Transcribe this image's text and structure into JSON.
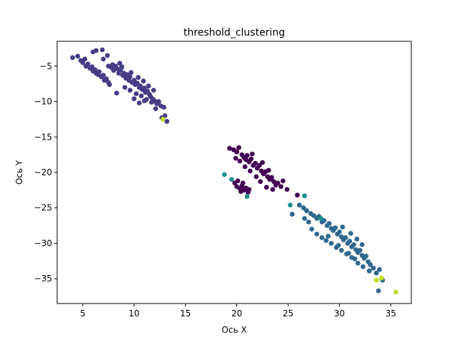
{
  "chart_data": {
    "type": "scatter",
    "title": "threshold_clustering",
    "xlabel": "Ось X",
    "ylabel": "Ось Y",
    "xlim": [
      2.5,
      37.0
    ],
    "ylim": [
      -38.5,
      -1.5
    ],
    "xticks": [
      5,
      10,
      15,
      20,
      25,
      30,
      35
    ],
    "yticks": [
      -5,
      -10,
      -15,
      -20,
      -25,
      -30,
      -35
    ],
    "xtick_labels": [
      "5",
      "10",
      "15",
      "20",
      "25",
      "30",
      "35"
    ],
    "ytick_labels": [
      "−5",
      "−10",
      "−15",
      "−20",
      "−25",
      "−30",
      "−35"
    ],
    "grid": false,
    "legend": false,
    "colormap": "viridis",
    "series": [
      {
        "color": "#433e85",
        "points": [
          [
            4.0,
            -3.8
          ],
          [
            4.5,
            -3.6
          ],
          [
            4.8,
            -4.2
          ],
          [
            5.0,
            -4.5
          ],
          [
            5.2,
            -4.0
          ],
          [
            5.3,
            -5.0
          ],
          [
            5.5,
            -4.7
          ],
          [
            5.7,
            -5.3
          ],
          [
            5.9,
            -5.1
          ],
          [
            6.0,
            -5.7
          ],
          [
            6.2,
            -5.5
          ],
          [
            6.3,
            -6.0
          ],
          [
            6.5,
            -6.2
          ],
          [
            6.6,
            -5.8
          ],
          [
            6.8,
            -6.5
          ],
          [
            7.0,
            -6.3
          ],
          [
            7.1,
            -7.0
          ],
          [
            7.3,
            -6.8
          ],
          [
            7.5,
            -7.3
          ],
          [
            7.6,
            -7.6
          ],
          [
            6.0,
            -3.0
          ],
          [
            6.3,
            -2.8
          ],
          [
            6.9,
            -2.7
          ],
          [
            7.4,
            -3.5
          ],
          [
            7.0,
            -4.0
          ],
          [
            7.5,
            -5.0
          ],
          [
            7.8,
            -5.2
          ],
          [
            8.0,
            -5.6
          ],
          [
            8.2,
            -5.0
          ],
          [
            8.4,
            -5.4
          ],
          [
            8.5,
            -6.0
          ],
          [
            8.7,
            -5.5
          ],
          [
            8.9,
            -6.3
          ],
          [
            9.0,
            -6.0
          ],
          [
            9.2,
            -6.7
          ],
          [
            9.3,
            -6.2
          ],
          [
            9.5,
            -7.0
          ],
          [
            9.6,
            -6.5
          ],
          [
            9.8,
            -7.3
          ],
          [
            10.0,
            -7.0
          ],
          [
            10.1,
            -7.6
          ],
          [
            10.3,
            -7.4
          ],
          [
            10.5,
            -8.0
          ],
          [
            10.6,
            -7.8
          ],
          [
            10.8,
            -8.3
          ],
          [
            11.0,
            -8.1
          ],
          [
            11.1,
            -8.7
          ],
          [
            11.3,
            -8.5
          ],
          [
            11.5,
            -9.0
          ],
          [
            11.6,
            -9.3
          ],
          [
            11.8,
            -9.6
          ],
          [
            12.0,
            -9.9
          ],
          [
            12.2,
            -10.3
          ],
          [
            12.4,
            -10.0
          ],
          [
            12.6,
            -10.6
          ],
          [
            12.9,
            -10.8
          ],
          [
            13.0,
            -12.0
          ],
          [
            13.2,
            -12.8
          ],
          [
            12.7,
            -12.3
          ],
          [
            8.8,
            -5.1
          ],
          [
            9.7,
            -5.9
          ],
          [
            10.4,
            -6.6
          ],
          [
            10.9,
            -7.1
          ],
          [
            11.4,
            -7.8
          ],
          [
            11.9,
            -8.4
          ],
          [
            9.1,
            -8.0
          ],
          [
            9.6,
            -8.4
          ],
          [
            10.2,
            -8.9
          ],
          [
            10.7,
            -9.2
          ],
          [
            11.2,
            -9.7
          ],
          [
            8.3,
            -8.8
          ],
          [
            10.0,
            -9.6
          ],
          [
            7.9,
            -4.8
          ],
          [
            8.6,
            -4.6
          ],
          [
            11.7,
            -10.1
          ],
          [
            12.1,
            -11.0
          ],
          [
            11.0,
            -9.9
          ],
          [
            10.5,
            -10.2
          ]
        ]
      },
      {
        "color": "#440154",
        "points": [
          [
            19.3,
            -16.6
          ],
          [
            19.7,
            -16.8
          ],
          [
            20.0,
            -17.1
          ],
          [
            20.2,
            -16.5
          ],
          [
            20.5,
            -17.5
          ],
          [
            20.7,
            -17.9
          ],
          [
            20.9,
            -18.2
          ],
          [
            21.0,
            -17.6
          ],
          [
            21.2,
            -18.5
          ],
          [
            21.4,
            -18.1
          ],
          [
            21.6,
            -19.0
          ],
          [
            21.8,
            -18.7
          ],
          [
            22.0,
            -19.4
          ],
          [
            22.2,
            -19.0
          ],
          [
            22.4,
            -19.8
          ],
          [
            22.6,
            -20.2
          ],
          [
            22.8,
            -19.9
          ],
          [
            23.0,
            -20.6
          ],
          [
            23.2,
            -21.0
          ],
          [
            23.4,
            -20.7
          ],
          [
            23.6,
            -21.3
          ],
          [
            23.8,
            -21.8
          ],
          [
            24.0,
            -21.5
          ],
          [
            24.3,
            -22.0
          ],
          [
            23.5,
            -22.4
          ],
          [
            22.9,
            -22.1
          ],
          [
            22.3,
            -21.3
          ],
          [
            21.9,
            -20.6
          ],
          [
            21.3,
            -19.8
          ],
          [
            20.8,
            -19.2
          ],
          [
            20.3,
            -18.4
          ],
          [
            19.9,
            -18.0
          ],
          [
            21.5,
            -17.4
          ],
          [
            22.5,
            -18.6
          ],
          [
            23.1,
            -19.7
          ],
          [
            24.5,
            -21.2
          ],
          [
            24.9,
            -22.4
          ],
          [
            25.9,
            -23.2
          ],
          [
            20.6,
            -21.5
          ],
          [
            20.1,
            -21.2
          ],
          [
            20.0,
            -22.0
          ],
          [
            20.3,
            -22.3
          ],
          [
            20.5,
            -21.9
          ],
          [
            20.7,
            -22.5
          ],
          [
            20.9,
            -22.2
          ],
          [
            21.1,
            -22.8
          ],
          [
            21.2,
            -22.4
          ],
          [
            19.8,
            -21.5
          ],
          [
            20.4,
            -22.7
          ]
        ]
      },
      {
        "color": "#31688e",
        "points": [
          [
            26.1,
            -24.6
          ],
          [
            26.5,
            -25.0
          ],
          [
            26.8,
            -25.4
          ],
          [
            27.2,
            -25.8
          ],
          [
            27.5,
            -26.1
          ],
          [
            27.8,
            -26.5
          ],
          [
            28.0,
            -26.2
          ],
          [
            28.3,
            -27.0
          ],
          [
            28.5,
            -26.8
          ],
          [
            28.8,
            -27.5
          ],
          [
            29.0,
            -27.2
          ],
          [
            29.2,
            -27.9
          ],
          [
            29.4,
            -28.2
          ],
          [
            29.6,
            -27.8
          ],
          [
            29.8,
            -28.7
          ],
          [
            30.0,
            -28.4
          ],
          [
            30.2,
            -29.1
          ],
          [
            30.4,
            -29.5
          ],
          [
            30.6,
            -29.2
          ],
          [
            30.8,
            -30.0
          ],
          [
            31.0,
            -29.7
          ],
          [
            31.2,
            -30.5
          ],
          [
            31.4,
            -30.2
          ],
          [
            31.6,
            -30.9
          ],
          [
            31.8,
            -31.3
          ],
          [
            32.0,
            -31.0
          ],
          [
            32.2,
            -31.7
          ],
          [
            32.4,
            -32.1
          ],
          [
            32.6,
            -31.8
          ],
          [
            32.8,
            -32.6
          ],
          [
            33.0,
            -33.0
          ],
          [
            33.3,
            -33.5
          ],
          [
            33.6,
            -34.2
          ],
          [
            33.9,
            -33.7
          ],
          [
            34.2,
            -35.2
          ],
          [
            33.8,
            -36.7
          ],
          [
            32.9,
            -33.9
          ],
          [
            32.3,
            -33.3
          ],
          [
            31.8,
            -32.8
          ],
          [
            31.2,
            -32.0
          ],
          [
            30.7,
            -31.5
          ],
          [
            30.2,
            -31.0
          ],
          [
            29.7,
            -30.6
          ],
          [
            29.2,
            -30.0
          ],
          [
            28.7,
            -29.6
          ],
          [
            28.3,
            -29.2
          ],
          [
            27.8,
            -28.7
          ],
          [
            27.3,
            -28.0
          ],
          [
            27.0,
            -27.0
          ],
          [
            26.6,
            -26.5
          ],
          [
            25.4,
            -25.9
          ],
          [
            28.9,
            -29.0
          ],
          [
            29.9,
            -30.3
          ],
          [
            30.9,
            -31.4
          ],
          [
            31.5,
            -32.2
          ],
          [
            30.3,
            -27.7
          ],
          [
            31.1,
            -28.6
          ],
          [
            31.7,
            -29.4
          ],
          [
            32.2,
            -30.2
          ]
        ]
      },
      {
        "color": "#21908d",
        "points": [
          [
            18.8,
            -20.3
          ],
          [
            21.0,
            -23.4
          ],
          [
            26.6,
            -23.3
          ],
          [
            25.2,
            -24.6
          ],
          [
            28.2,
            -26.5
          ],
          [
            19.5,
            -21.0
          ]
        ]
      },
      {
        "color": "#bddf26",
        "points": [
          [
            12.8,
            -12.5
          ],
          [
            33.6,
            -35.2
          ],
          [
            34.1,
            -34.9
          ],
          [
            35.5,
            -36.9
          ]
        ]
      }
    ]
  }
}
